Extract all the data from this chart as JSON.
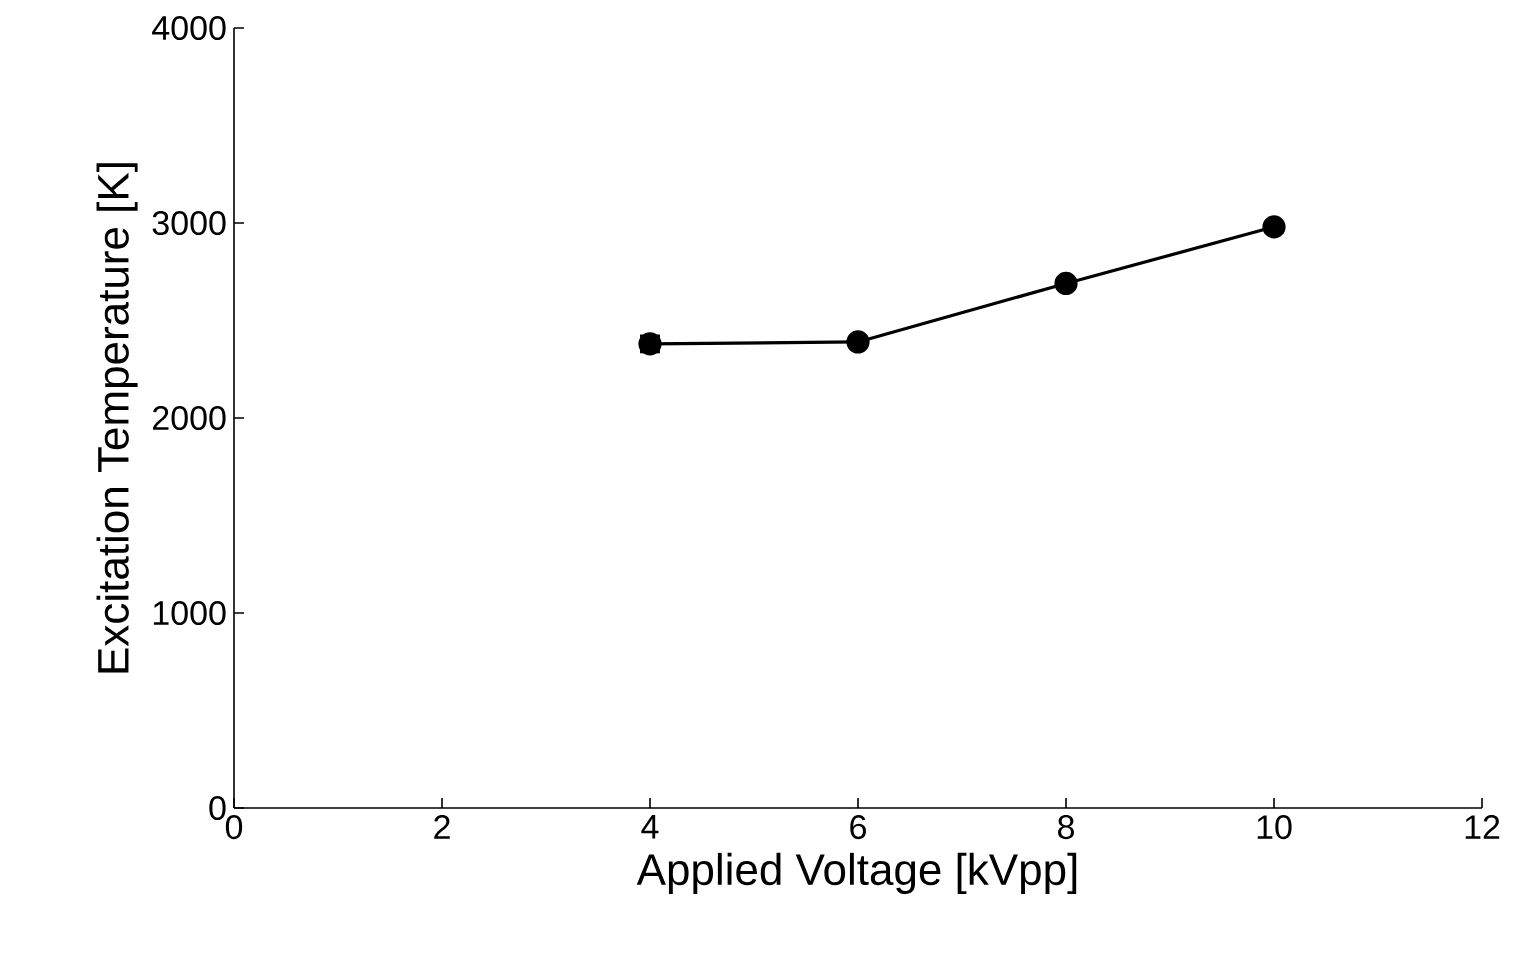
{
  "chart_data": {
    "type": "line",
    "xlabel": "Applied Voltage [kVpp]",
    "ylabel": "Excitation Temperature [K]",
    "x": [
      4,
      6,
      8,
      10
    ],
    "series": [
      {
        "color": "#000000",
        "values": [
          2380,
          2390,
          2690,
          2980
        ],
        "errors": [
          40,
          null,
          null,
          null
        ]
      }
    ],
    "xlim": [
      0,
      12
    ],
    "xticks": [
      0,
      2,
      4,
      6,
      8,
      10,
      12
    ],
    "ylim": [
      0,
      4000
    ],
    "yticks": [
      0,
      1000,
      2000,
      3000,
      4000
    ],
    "marker": "circle",
    "line_style": "solid"
  }
}
